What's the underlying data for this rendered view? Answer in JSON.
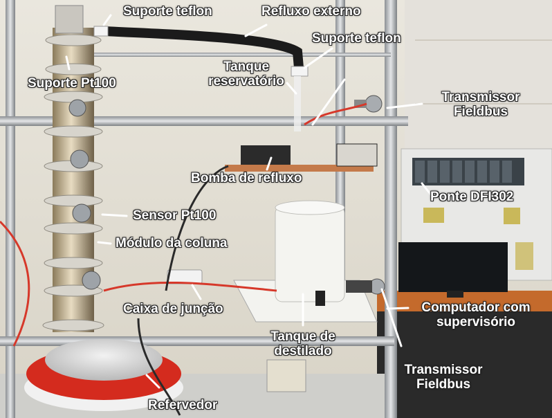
{
  "image": {
    "description_colors": {
      "wall": "#e6e2d6",
      "steel": "#b9bcbf",
      "hose": "#1b1b1b",
      "reboiler_red": "#d42b1e",
      "tank": "#f4f4f0",
      "cabinet": "#e9e9e6",
      "desk": "#c46a2c"
    }
  },
  "labels": {
    "suporte_teflon_1": "Suporte teflon",
    "refluxo_externo": "Refluxo externo",
    "suporte_teflon_2": "Suporte teflon",
    "tanque_reservatorio_1": "Tanque",
    "tanque_reservatorio_2": "reservatório",
    "suporte_pt100": "Suporte Pt100",
    "transmissor_1a": "Transmissor",
    "transmissor_1b": "Fieldbus",
    "bomba_refluxo": "Bomba de refluxo",
    "ponte": "Ponte DFI302",
    "sensor": "Sensor Pt100",
    "modulo": "Módulo da coluna",
    "caixa": "Caixa de junção",
    "computador_1": "Computador com",
    "computador_2": "supervisório",
    "tanque_dest_1": "Tanque de",
    "tanque_dest_2": "destilado",
    "transmissor_2a": "Transmissor",
    "transmissor_2b": "Fieldbus",
    "refervedor": "Refervedor"
  }
}
